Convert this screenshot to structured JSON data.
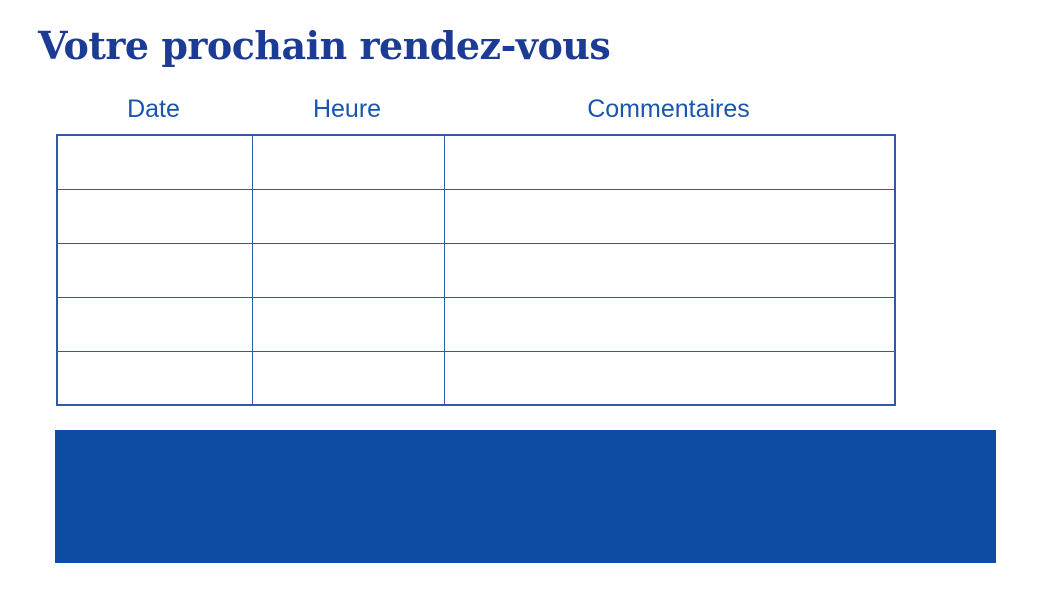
{
  "page": {
    "title": "Votre prochain rendez-vous"
  },
  "colors": {
    "title_text": "#1c3b94",
    "header_text": "#1a55ad",
    "table_border": "#2e5ba9",
    "banner_fill": "#0d4da1",
    "page_background": "#ffffff"
  },
  "table": {
    "columns": [
      {
        "label": "Date"
      },
      {
        "label": "Heure"
      },
      {
        "label": "Commentaires"
      }
    ],
    "rows": [
      [
        "",
        "",
        ""
      ],
      [
        "",
        "",
        ""
      ],
      [
        "",
        "",
        ""
      ],
      [
        "",
        "",
        ""
      ],
      [
        "",
        "",
        ""
      ]
    ]
  },
  "banner": {
    "text": ""
  }
}
